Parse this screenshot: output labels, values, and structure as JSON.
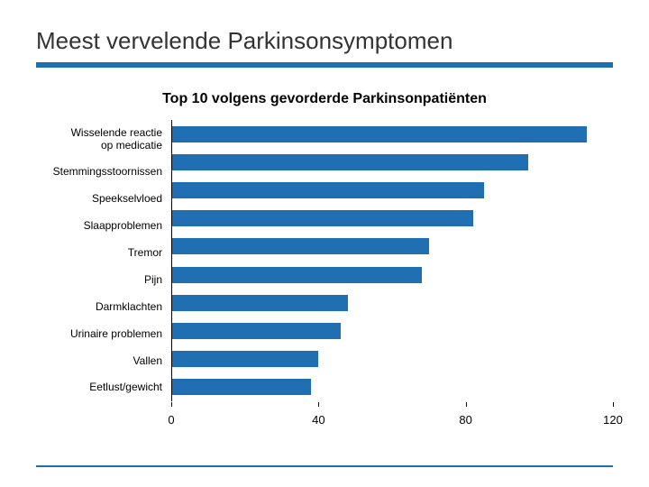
{
  "title": "Meest vervelende Parkinsonsymptomen",
  "subtitle": "Top 10 volgens gevorderde Parkinsonpatiënten",
  "chart": {
    "type": "bar-horizontal",
    "xlim": [
      0,
      120
    ],
    "xticks": [
      0,
      40,
      80,
      120
    ],
    "bar_color": "#1f6fb2",
    "background_color": "#ffffff",
    "axis_color": "#000000",
    "label_fontsize": 12,
    "tick_fontsize": 13,
    "categories": [
      "Wisselende reactie\nop medicatie",
      "Stemmingsstoornissen",
      "Speekselvloed",
      "Slaapproblemen",
      "Tremor",
      "Pijn",
      "Darmklachten",
      "Urinaire problemen",
      "Vallen",
      "Eetlust/gewicht"
    ],
    "values": [
      113,
      97,
      85,
      82,
      70,
      68,
      48,
      46,
      40,
      38
    ]
  },
  "accent_color": "#1f6fb2",
  "title_fontsize": 26,
  "subtitle_fontsize": 16
}
